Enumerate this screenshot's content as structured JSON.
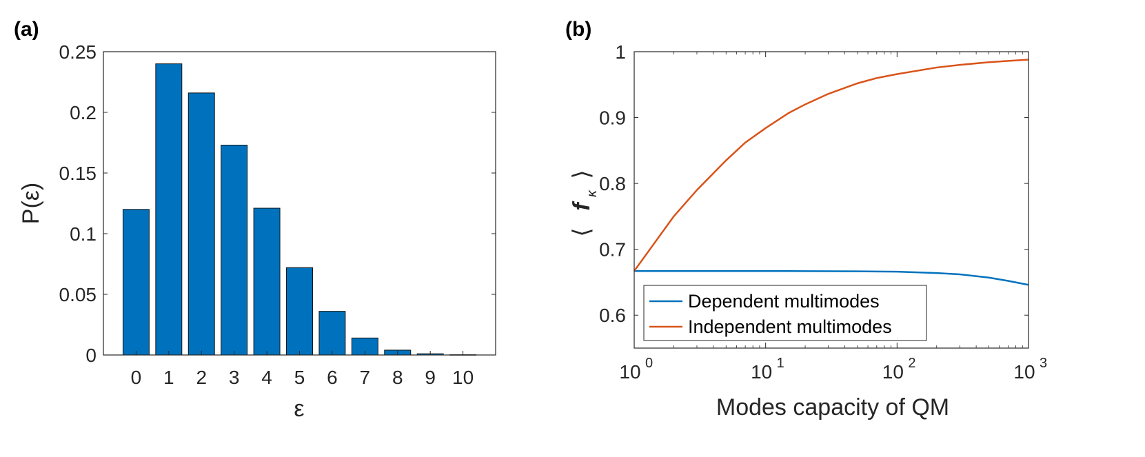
{
  "chart_data": [
    {
      "type": "bar",
      "panel_label": "(a)",
      "categories": [
        "0",
        "1",
        "2",
        "3",
        "4",
        "5",
        "6",
        "7",
        "8",
        "9",
        "10"
      ],
      "values": [
        0.12,
        0.24,
        0.216,
        0.173,
        0.121,
        0.072,
        0.036,
        0.014,
        0.004,
        0.001,
        0.0002
      ],
      "bar_color": "#0072bd",
      "title": "",
      "xlabel": "ε",
      "ylabel": "P(ε)",
      "xlim": [
        -1,
        11
      ],
      "ylim": [
        0,
        0.25
      ],
      "yticks": [
        0,
        0.05,
        0.1,
        0.15,
        0.2,
        0.25
      ],
      "ytick_labels": [
        "0",
        "0.05",
        "0.1",
        "0.15",
        "0.2",
        "0.25"
      ],
      "grid": false
    },
    {
      "type": "line",
      "panel_label": "(b)",
      "xscale": "log",
      "xlim": [
        1,
        1000
      ],
      "ylim": [
        0.55,
        1.0
      ],
      "xticks": [
        1,
        10,
        100,
        1000
      ],
      "xtick_bases": [
        "10",
        "10",
        "10",
        "10"
      ],
      "xtick_exponents": [
        "0",
        "1",
        "2",
        "3"
      ],
      "yticks": [
        0.6,
        0.7,
        0.8,
        0.9,
        1.0
      ],
      "ytick_labels": [
        "0.6",
        "0.7",
        "0.8",
        "0.9",
        "1"
      ],
      "xlabel": "Modes capacity of QM",
      "ylabel_parts": {
        "left": "⟨",
        "f": "f",
        "sub": "κ",
        "right": "⟩"
      },
      "legend_position": "bottom-left",
      "grid": false,
      "series": [
        {
          "name": "Dependent multimodes",
          "color": "#0072bd",
          "x": [
            1,
            2,
            5,
            10,
            20,
            50,
            100,
            200,
            300,
            500,
            700,
            1000
          ],
          "y": [
            0.667,
            0.667,
            0.667,
            0.667,
            0.6668,
            0.6665,
            0.666,
            0.664,
            0.662,
            0.657,
            0.652,
            0.646
          ]
        },
        {
          "name": "Independent multimodes",
          "color": "#d95319",
          "x": [
            1,
            2,
            3,
            5,
            7,
            10,
            15,
            20,
            30,
            50,
            70,
            100,
            200,
            300,
            500,
            700,
            1000
          ],
          "y": [
            0.667,
            0.75,
            0.79,
            0.835,
            0.862,
            0.884,
            0.907,
            0.92,
            0.936,
            0.952,
            0.96,
            0.966,
            0.976,
            0.98,
            0.984,
            0.986,
            0.988
          ]
        }
      ]
    }
  ]
}
